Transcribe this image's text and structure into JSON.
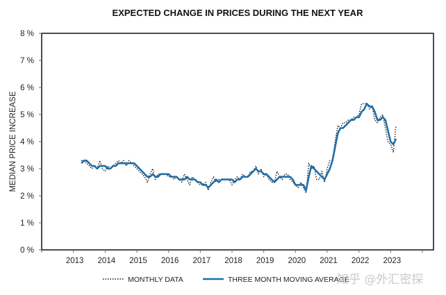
{
  "chart_data": {
    "type": "line",
    "title": "EXPECTED CHANGE IN PRICES DURING THE NEXT YEAR",
    "xlabel": "",
    "ylabel": "MEDIAN PRICE INCREASE",
    "ylim": [
      0,
      8
    ],
    "xlim": [
      2012,
      2024.35
    ],
    "y_ticks": [
      0,
      1,
      2,
      3,
      4,
      5,
      6,
      7,
      8
    ],
    "y_tick_labels": [
      "0 %",
      "1 %",
      "2 %",
      "3 %",
      "4 %",
      "5 %",
      "6 %",
      "7 %",
      "8 %"
    ],
    "x_ticks": [
      2013,
      2014,
      2015,
      2016,
      2017,
      2018,
      2019,
      2020,
      2021,
      2022,
      2023
    ],
    "x_tick_labels": [
      "2013",
      "2014",
      "2015",
      "2016",
      "2017",
      "2018",
      "2019",
      "2020",
      "2021",
      "2022",
      "2023"
    ],
    "grid": false,
    "legend_position": "bottom",
    "start": "2013-01",
    "series": [
      {
        "name": "MONTHLY DATA",
        "style": "dotted",
        "color": "#111111",
        "values": [
          3.3,
          3.3,
          3.2,
          3.1,
          3.0,
          3.1,
          3.0,
          3.3,
          3.0,
          2.9,
          3.1,
          3.0,
          3.1,
          3.2,
          3.3,
          3.2,
          3.3,
          3.1,
          3.3,
          3.2,
          3.1,
          3.0,
          2.9,
          2.8,
          2.7,
          2.5,
          2.8,
          3.0,
          2.6,
          2.8,
          2.8,
          2.8,
          2.8,
          2.7,
          2.7,
          2.6,
          2.7,
          2.6,
          2.5,
          2.8,
          2.6,
          2.4,
          2.7,
          2.6,
          2.5,
          2.4,
          2.4,
          2.5,
          2.2,
          2.5,
          2.7,
          2.5,
          2.6,
          2.6,
          2.6,
          2.6,
          2.6,
          2.4,
          2.6,
          2.7,
          2.6,
          2.8,
          2.7,
          2.7,
          2.9,
          2.9,
          3.1,
          2.8,
          3.0,
          2.7,
          2.8,
          2.6,
          2.5,
          2.5,
          2.9,
          2.7,
          2.6,
          2.8,
          2.8,
          2.6,
          2.5,
          2.4,
          2.3,
          2.5,
          2.3,
          2.1,
          3.2,
          3.0,
          3.1,
          2.6,
          2.6,
          2.9,
          2.5,
          3.0,
          3.3,
          3.3,
          4.0,
          4.6,
          4.5,
          4.7,
          4.7,
          4.8,
          4.8,
          4.9,
          4.9,
          5.0,
          5.4,
          5.4,
          5.4,
          5.2,
          5.3,
          4.8,
          4.7,
          4.9,
          5.0,
          4.5,
          4.0,
          3.9,
          3.6,
          4.6
        ]
      },
      {
        "name": "THREE MONTH MOVING AVERAGE",
        "style": "solid",
        "color": "#1f6fa8",
        "values": [
          3.2,
          3.3,
          3.3,
          3.2,
          3.1,
          3.1,
          3.0,
          3.1,
          3.1,
          3.1,
          3.0,
          3.0,
          3.1,
          3.1,
          3.2,
          3.2,
          3.2,
          3.2,
          3.2,
          3.2,
          3.2,
          3.1,
          3.0,
          2.9,
          2.8,
          2.7,
          2.7,
          2.8,
          2.7,
          2.7,
          2.8,
          2.8,
          2.8,
          2.8,
          2.7,
          2.7,
          2.7,
          2.6,
          2.6,
          2.6,
          2.7,
          2.6,
          2.6,
          2.6,
          2.5,
          2.5,
          2.4,
          2.4,
          2.3,
          2.4,
          2.5,
          2.6,
          2.5,
          2.6,
          2.6,
          2.6,
          2.6,
          2.6,
          2.5,
          2.6,
          2.6,
          2.7,
          2.7,
          2.7,
          2.8,
          2.9,
          3.0,
          2.9,
          2.9,
          2.8,
          2.8,
          2.7,
          2.6,
          2.5,
          2.6,
          2.7,
          2.7,
          2.7,
          2.7,
          2.7,
          2.6,
          2.4,
          2.4,
          2.4,
          2.4,
          2.2,
          2.7,
          3.1,
          3.0,
          2.9,
          2.8,
          2.7,
          2.6,
          2.8,
          3.0,
          3.3,
          3.8,
          4.3,
          4.5,
          4.5,
          4.6,
          4.7,
          4.8,
          4.8,
          4.9,
          4.9,
          5.1,
          5.2,
          5.4,
          5.3,
          5.3,
          5.1,
          4.8,
          4.8,
          4.9,
          4.8,
          4.4,
          4.0,
          3.9,
          4.1
        ]
      }
    ],
    "x_offset_months": 0,
    "series_start_year_fraction": 2013.0,
    "series_end_note": "through approx. April 2023"
  },
  "watermark": "知乎 @外汇密探"
}
